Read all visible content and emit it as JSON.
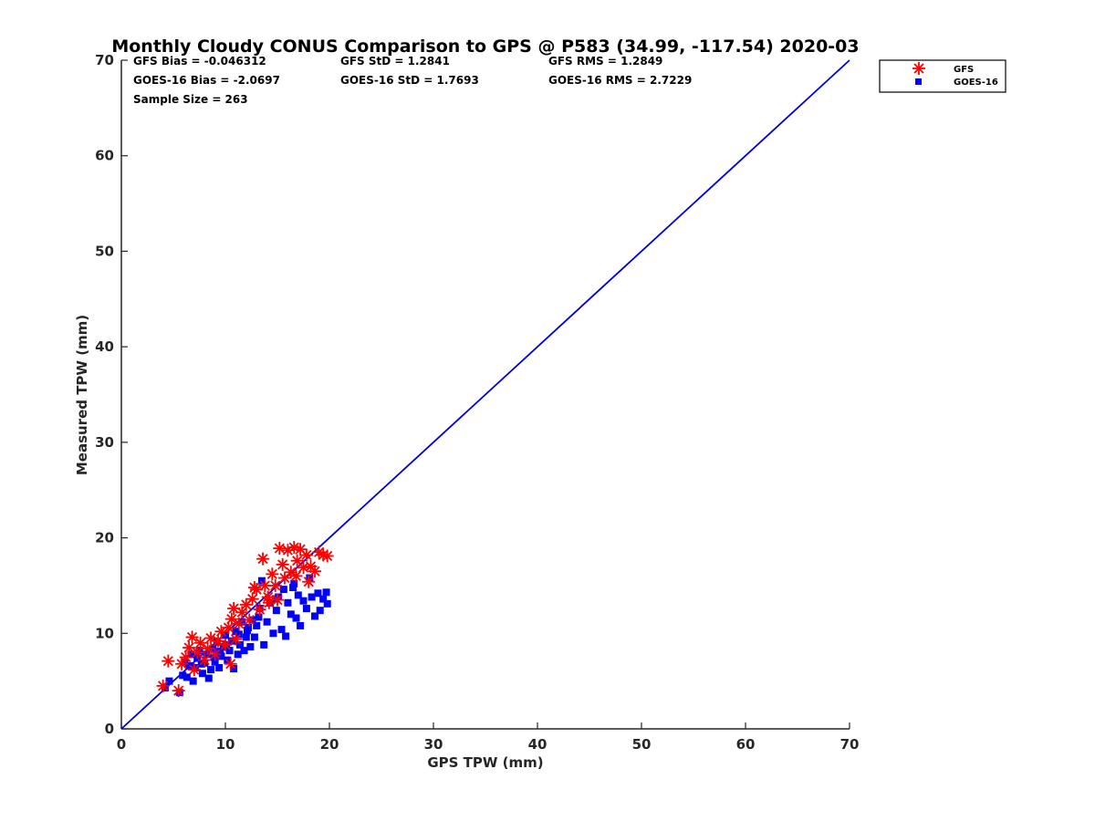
{
  "chart_data": {
    "type": "scatter",
    "title": "Monthly Cloudy CONUS Comparison to GPS @ P583 (34.99, -117.54) 2020-03",
    "xlabel": "GPS TPW (mm)",
    "ylabel": "Measured TPW (mm)",
    "xlim": [
      0,
      70
    ],
    "ylim": [
      0,
      70
    ],
    "xticks": [
      "0",
      "10",
      "20",
      "30",
      "40",
      "50",
      "60",
      "70"
    ],
    "yticks": [
      "0",
      "10",
      "20",
      "30",
      "40",
      "50",
      "60",
      "70"
    ],
    "stats": {
      "gfs_bias": "GFS Bias = -0.046312",
      "gfs_std": "GFS StD = 1.2841",
      "gfs_rms": "GFS RMS = 1.2849",
      "goes_bias": "GOES-16 Bias = -2.0697",
      "goes_std": "GOES-16 StD = 1.7693",
      "goes_rms": "GOES-16 RMS = 2.7229",
      "sample_size": "Sample Size = 263"
    },
    "legend": {
      "position": "top-right outside",
      "entries": [
        "GFS",
        "GOES-16"
      ]
    },
    "reference_line": {
      "name": "1:1 line",
      "from": [
        0,
        0
      ],
      "to": [
        70,
        70
      ],
      "color": "#0000dd"
    },
    "series": [
      {
        "name": "GFS",
        "marker": "asterisk",
        "color": "#ff0000",
        "points": [
          [
            4.0,
            4.5
          ],
          [
            4.5,
            7.1
          ],
          [
            5.5,
            4.0
          ],
          [
            5.8,
            6.8
          ],
          [
            6.2,
            7.5
          ],
          [
            6.5,
            8.5
          ],
          [
            6.8,
            9.6
          ],
          [
            7.0,
            6.2
          ],
          [
            7.3,
            8.0
          ],
          [
            7.6,
            9.0
          ],
          [
            8.0,
            7.2
          ],
          [
            8.3,
            8.4
          ],
          [
            8.6,
            9.5
          ],
          [
            9.0,
            7.8
          ],
          [
            9.3,
            9.2
          ],
          [
            9.6,
            10.2
          ],
          [
            10.0,
            8.8
          ],
          [
            10.3,
            10.6
          ],
          [
            10.6,
            11.5
          ],
          [
            10.8,
            12.6
          ],
          [
            11.0,
            9.4
          ],
          [
            11.3,
            11.0
          ],
          [
            11.6,
            12.2
          ],
          [
            12.0,
            13.0
          ],
          [
            12.3,
            11.4
          ],
          [
            12.6,
            13.6
          ],
          [
            13.0,
            14.6
          ],
          [
            13.3,
            12.5
          ],
          [
            13.6,
            17.8
          ],
          [
            13.8,
            15.0
          ],
          [
            14.1,
            13.8
          ],
          [
            14.5,
            16.2
          ],
          [
            14.8,
            15.0
          ],
          [
            15.0,
            13.5
          ],
          [
            15.2,
            18.9
          ],
          [
            15.5,
            17.2
          ],
          [
            15.7,
            15.8
          ],
          [
            16.0,
            18.7
          ],
          [
            16.3,
            16.4
          ],
          [
            16.6,
            19.0
          ],
          [
            16.9,
            17.6
          ],
          [
            17.2,
            18.8
          ],
          [
            17.5,
            16.9
          ],
          [
            17.8,
            18.2
          ],
          [
            18.2,
            17.0
          ],
          [
            18.6,
            16.5
          ],
          [
            19.0,
            18.5
          ],
          [
            19.4,
            18.2
          ],
          [
            19.8,
            18.1
          ],
          [
            10.5,
            6.8
          ],
          [
            12.8,
            14.8
          ],
          [
            14.2,
            13.2
          ],
          [
            16.8,
            16.0
          ],
          [
            18.0,
            15.4
          ]
        ]
      },
      {
        "name": "GOES-16",
        "marker": "square",
        "color": "#0000ff",
        "points": [
          [
            4.2,
            4.3
          ],
          [
            4.6,
            5.0
          ],
          [
            5.6,
            3.8
          ],
          [
            5.9,
            5.6
          ],
          [
            6.1,
            7.0
          ],
          [
            6.3,
            5.4
          ],
          [
            6.5,
            6.6
          ],
          [
            6.7,
            7.8
          ],
          [
            6.9,
            5.0
          ],
          [
            7.1,
            6.4
          ],
          [
            7.3,
            7.4
          ],
          [
            7.5,
            8.2
          ],
          [
            7.8,
            5.8
          ],
          [
            8.0,
            6.9
          ],
          [
            8.2,
            7.8
          ],
          [
            8.4,
            5.3
          ],
          [
            8.6,
            6.2
          ],
          [
            8.8,
            8.4
          ],
          [
            9.0,
            7.0
          ],
          [
            9.2,
            9.1
          ],
          [
            9.4,
            6.4
          ],
          [
            9.6,
            7.6
          ],
          [
            9.8,
            8.6
          ],
          [
            10.0,
            9.8
          ],
          [
            10.2,
            7.2
          ],
          [
            10.4,
            8.2
          ],
          [
            10.6,
            9.2
          ],
          [
            10.8,
            6.3
          ],
          [
            11.0,
            10.2
          ],
          [
            11.2,
            7.8
          ],
          [
            11.4,
            8.8
          ],
          [
            11.6,
            11.2
          ],
          [
            11.8,
            8.2
          ],
          [
            12.0,
            9.6
          ],
          [
            12.2,
            10.6
          ],
          [
            12.4,
            8.6
          ],
          [
            12.6,
            11.4
          ],
          [
            12.8,
            9.6
          ],
          [
            13.0,
            10.8
          ],
          [
            13.3,
            12.6
          ],
          [
            13.5,
            15.5
          ],
          [
            13.7,
            8.8
          ],
          [
            14.0,
            11.2
          ],
          [
            14.3,
            13.2
          ],
          [
            14.6,
            10.0
          ],
          [
            14.9,
            12.4
          ],
          [
            15.1,
            13.8
          ],
          [
            15.4,
            10.4
          ],
          [
            15.6,
            14.6
          ],
          [
            15.8,
            9.7
          ],
          [
            16.0,
            13.2
          ],
          [
            16.3,
            12.0
          ],
          [
            16.6,
            15.2
          ],
          [
            16.8,
            11.6
          ],
          [
            17.0,
            14.0
          ],
          [
            17.2,
            10.8
          ],
          [
            17.5,
            13.4
          ],
          [
            17.8,
            12.6
          ],
          [
            18.1,
            15.8
          ],
          [
            18.3,
            13.8
          ],
          [
            18.6,
            11.8
          ],
          [
            18.9,
            14.2
          ],
          [
            19.1,
            12.4
          ],
          [
            19.4,
            13.6
          ],
          [
            19.7,
            14.3
          ],
          [
            19.8,
            13.1
          ],
          [
            10.1,
            8.8
          ],
          [
            11.3,
            9.9
          ],
          [
            12.1,
            10.3
          ],
          [
            9.5,
            8.1
          ],
          [
            8.9,
            7.5
          ],
          [
            7.7,
            6.8
          ],
          [
            13.2,
            11.7
          ],
          [
            14.8,
            13.6
          ],
          [
            16.5,
            14.8
          ]
        ]
      }
    ]
  }
}
